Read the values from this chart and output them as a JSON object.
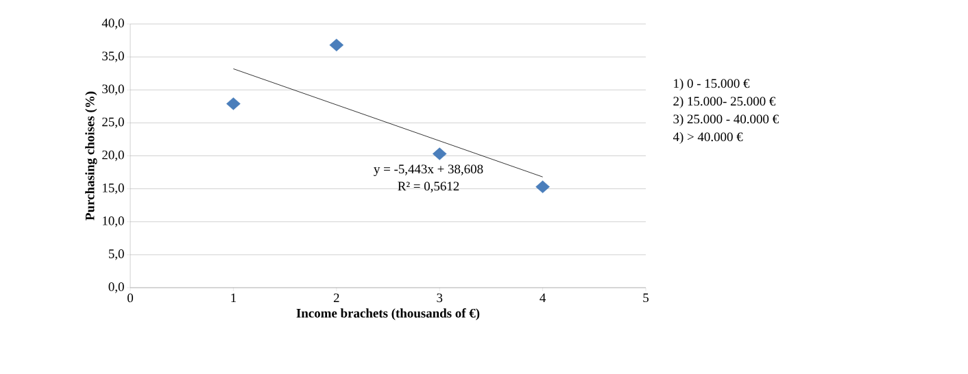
{
  "chart_data": {
    "type": "scatter",
    "xlabel": "Income brachets (thousands of €)",
    "ylabel": "Purchasing choises (%)",
    "series": [
      {
        "color": "#4a7ebb",
        "marker": "diamond",
        "x": [
          1,
          2,
          3,
          4
        ],
        "values": [
          27.9,
          36.8,
          20.3,
          15.3
        ]
      },
      {
        "type": "line",
        "marker": "none",
        "color": "#000000",
        "x": [
          1,
          4
        ],
        "values": [
          33.2,
          16.8
        ]
      }
    ],
    "xlim": [
      0,
      5
    ],
    "xticks": [
      0,
      1,
      2,
      3,
      4,
      5
    ],
    "ylim": [
      0,
      40
    ],
    "yticks": [
      {
        "value": 0,
        "label": "0,0"
      },
      {
        "value": 5,
        "label": "5,0"
      },
      {
        "value": 10,
        "label": "10,0"
      },
      {
        "value": 15,
        "label": "15,0"
      },
      {
        "value": 20,
        "label": "20,0"
      },
      {
        "value": 25,
        "label": "25,0"
      },
      {
        "value": 30,
        "label": "30,0"
      },
      {
        "value": 35,
        "label": "35,0"
      },
      {
        "value": 40,
        "label": "40,0"
      }
    ],
    "grid": "y",
    "annotations": [
      "y = -5,443x + 38,608",
      "R² = 0,5612",
      "1) 0 - 15.000 €",
      "2) 15.000- 25.000 €",
      "3) 25.000 - 40.000 €",
      "4) > 40.000 €"
    ]
  }
}
